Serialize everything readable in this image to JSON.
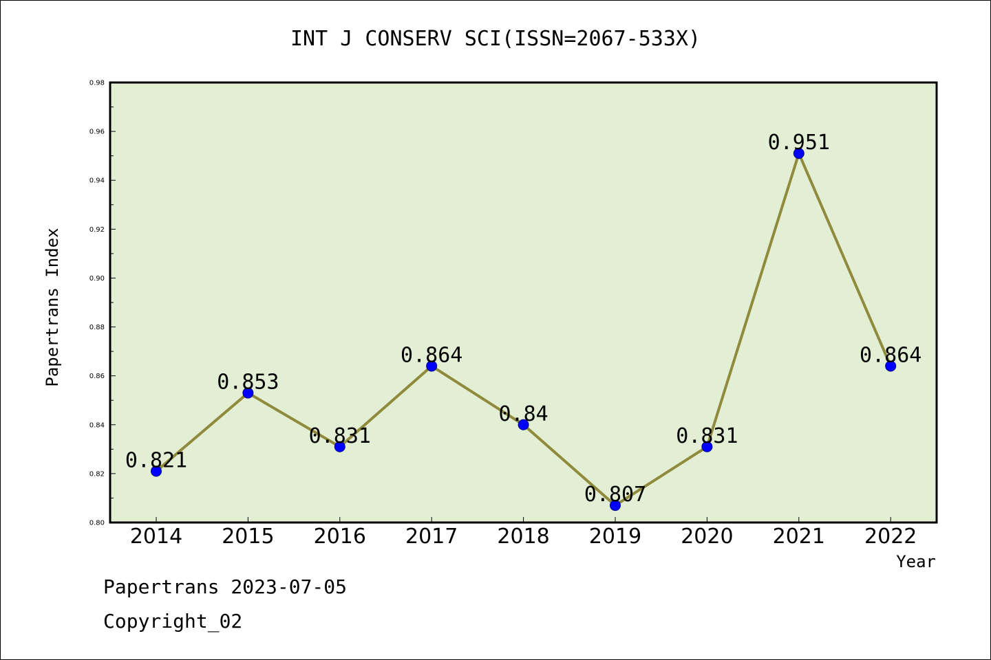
{
  "chart_data": {
    "type": "line",
    "title": "INT J CONSERV SCI(ISSN=2067-533X)",
    "xlabel": "Year",
    "ylabel": "Papertrans Index",
    "categories": [
      "2014",
      "2015",
      "2016",
      "2017",
      "2018",
      "2019",
      "2020",
      "2021",
      "2022"
    ],
    "series": [
      {
        "values": [
          0.821,
          0.853,
          0.831,
          0.864,
          0.84,
          0.807,
          0.831,
          0.951,
          0.864
        ],
        "data_labels": [
          "0.821",
          "0.853",
          "0.831",
          "0.864",
          "0.84",
          "0.807",
          "0.831",
          "0.951",
          "0.864"
        ]
      }
    ],
    "ylim": [
      0.8,
      0.98
    ],
    "yticks": [
      "0.80",
      "0.82",
      "0.84",
      "0.86",
      "0.88",
      "0.90",
      "0.92",
      "0.94",
      "0.96",
      "0.98"
    ],
    "grid": false,
    "legend": "none",
    "colors": {
      "plot_background": "#e2efd5",
      "line": "#8f8a3c",
      "marker": "#0000ff"
    }
  },
  "footer": {
    "line1": "Papertrans 2023-07-05",
    "line2": "Copyright_02"
  }
}
